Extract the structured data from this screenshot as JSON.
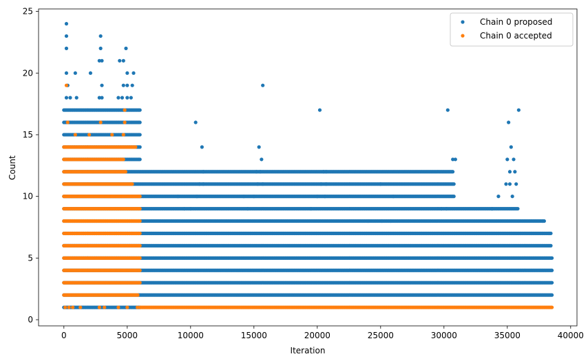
{
  "chart_data": {
    "type": "scatter",
    "title": "",
    "xlabel": "Iteration",
    "ylabel": "Count",
    "xlim": [
      -2000,
      40500
    ],
    "ylim": [
      -0.5,
      25.2
    ],
    "xticks": [
      0,
      5000,
      10000,
      15000,
      20000,
      25000,
      30000,
      35000,
      40000
    ],
    "yticks": [
      0,
      5,
      10,
      15,
      20,
      25
    ],
    "grid": false,
    "legend_position": "top-right",
    "series": [
      {
        "name": "Chain 0 proposed",
        "color": "#1f77b4",
        "marker": "circle",
        "bands": [
          {
            "y": 1,
            "x_start": 0,
            "x_end": 6000
          },
          {
            "y": 2,
            "x_start": 0,
            "x_end": 38600
          },
          {
            "y": 3,
            "x_start": 0,
            "x_end": 38600
          },
          {
            "y": 4,
            "x_start": 0,
            "x_end": 38600
          },
          {
            "y": 5,
            "x_start": 0,
            "x_end": 38600
          },
          {
            "y": 6,
            "x_start": 0,
            "x_end": 38500
          },
          {
            "y": 7,
            "x_start": 0,
            "x_end": 38500
          },
          {
            "y": 8,
            "x_start": 0,
            "x_end": 38000
          },
          {
            "y": 9,
            "x_start": 0,
            "x_end": 35900
          },
          {
            "y": 10,
            "x_start": 0,
            "x_end": 30800
          },
          {
            "y": 11,
            "x_start": 0,
            "x_end": 30800
          },
          {
            "y": 12,
            "x_start": 0,
            "x_end": 30700
          },
          {
            "y": 13,
            "x_start": 0,
            "x_end": 6000
          },
          {
            "y": 14,
            "x_start": 0,
            "x_end": 6000
          },
          {
            "y": 15,
            "x_start": 0,
            "x_end": 6000
          },
          {
            "y": 16,
            "x_start": 0,
            "x_end": 6000
          },
          {
            "y": 17,
            "x_start": 0,
            "x_end": 6000
          }
        ],
        "points": [
          {
            "x": 200,
            "y": 24
          },
          {
            "x": 200,
            "y": 23
          },
          {
            "x": 200,
            "y": 22
          },
          {
            "x": 200,
            "y": 20
          },
          {
            "x": 200,
            "y": 18
          },
          {
            "x": 300,
            "y": 19
          },
          {
            "x": 900,
            "y": 20
          },
          {
            "x": 500,
            "y": 18
          },
          {
            "x": 1000,
            "y": 18
          },
          {
            "x": 2100,
            "y": 20
          },
          {
            "x": 2900,
            "y": 23
          },
          {
            "x": 2900,
            "y": 22
          },
          {
            "x": 2800,
            "y": 21
          },
          {
            "x": 3000,
            "y": 21
          },
          {
            "x": 3000,
            "y": 19
          },
          {
            "x": 3000,
            "y": 18
          },
          {
            "x": 2800,
            "y": 18
          },
          {
            "x": 4400,
            "y": 21
          },
          {
            "x": 4700,
            "y": 21
          },
          {
            "x": 4900,
            "y": 22
          },
          {
            "x": 5000,
            "y": 20
          },
          {
            "x": 5500,
            "y": 20
          },
          {
            "x": 4700,
            "y": 19
          },
          {
            "x": 5000,
            "y": 19
          },
          {
            "x": 5400,
            "y": 19
          },
          {
            "x": 4300,
            "y": 18
          },
          {
            "x": 4600,
            "y": 18
          },
          {
            "x": 5000,
            "y": 18
          },
          {
            "x": 5300,
            "y": 18
          },
          {
            "x": 10400,
            "y": 16
          },
          {
            "x": 10900,
            "y": 14
          },
          {
            "x": 11000,
            "y": 12
          },
          {
            "x": 10700,
            "y": 11
          },
          {
            "x": 11000,
            "y": 11
          },
          {
            "x": 10500,
            "y": 10
          },
          {
            "x": 9000,
            "y": 10
          },
          {
            "x": 15700,
            "y": 19
          },
          {
            "x": 15400,
            "y": 14
          },
          {
            "x": 15600,
            "y": 13
          },
          {
            "x": 15200,
            "y": 12
          },
          {
            "x": 15500,
            "y": 12
          },
          {
            "x": 15300,
            "y": 11
          },
          {
            "x": 15700,
            "y": 11
          },
          {
            "x": 14200,
            "y": 10
          },
          {
            "x": 15000,
            "y": 10
          },
          {
            "x": 20200,
            "y": 17
          },
          {
            "x": 20500,
            "y": 12
          },
          {
            "x": 20700,
            "y": 12
          },
          {
            "x": 20300,
            "y": 11
          },
          {
            "x": 20700,
            "y": 11
          },
          {
            "x": 20000,
            "y": 10
          },
          {
            "x": 20600,
            "y": 10
          },
          {
            "x": 25000,
            "y": 11
          },
          {
            "x": 26000,
            "y": 10
          },
          {
            "x": 24000,
            "y": 8
          },
          {
            "x": 25100,
            "y": 8
          },
          {
            "x": 25800,
            "y": 8
          },
          {
            "x": 30300,
            "y": 17
          },
          {
            "x": 30700,
            "y": 13
          },
          {
            "x": 30900,
            "y": 13
          },
          {
            "x": 35100,
            "y": 16
          },
          {
            "x": 35900,
            "y": 17
          },
          {
            "x": 35300,
            "y": 14
          },
          {
            "x": 35000,
            "y": 13
          },
          {
            "x": 35500,
            "y": 13
          },
          {
            "x": 35200,
            "y": 12
          },
          {
            "x": 35600,
            "y": 12
          },
          {
            "x": 34900,
            "y": 11
          },
          {
            "x": 35200,
            "y": 11
          },
          {
            "x": 35700,
            "y": 11
          },
          {
            "x": 34300,
            "y": 10
          },
          {
            "x": 35400,
            "y": 10
          },
          {
            "x": 33800,
            "y": 9
          },
          {
            "x": 37800,
            "y": 8
          },
          {
            "x": 38300,
            "y": 7
          },
          {
            "x": 9500,
            "y": 9
          },
          {
            "x": 10000,
            "y": 9
          },
          {
            "x": 14500,
            "y": 9
          },
          {
            "x": 19500,
            "y": 9
          },
          {
            "x": 29800,
            "y": 9
          },
          {
            "x": 30200,
            "y": 9
          },
          {
            "x": 33800,
            "y": 9
          }
        ]
      },
      {
        "name": "Chain 0 accepted",
        "color": "#ff7f0e",
        "marker": "circle",
        "bands": [
          {
            "y": 1,
            "x_start": 6000,
            "x_end": 38600
          },
          {
            "y": 2,
            "x_start": 0,
            "x_end": 5900
          },
          {
            "y": 3,
            "x_start": 0,
            "x_end": 6000
          },
          {
            "y": 4,
            "x_start": 0,
            "x_end": 6000
          },
          {
            "y": 5,
            "x_start": 0,
            "x_end": 6000
          },
          {
            "y": 6,
            "x_start": 0,
            "x_end": 6000
          },
          {
            "y": 7,
            "x_start": 0,
            "x_end": 6000
          },
          {
            "y": 8,
            "x_start": 0,
            "x_end": 6000
          },
          {
            "y": 9,
            "x_start": 0,
            "x_end": 6000
          },
          {
            "y": 10,
            "x_start": 0,
            "x_end": 6000
          },
          {
            "y": 11,
            "x_start": 0,
            "x_end": 5400
          },
          {
            "y": 12,
            "x_start": 0,
            "x_end": 4900
          },
          {
            "y": 13,
            "x_start": 0,
            "x_end": 4700
          },
          {
            "y": 14,
            "x_start": 0,
            "x_end": 5700
          }
        ],
        "points": [
          {
            "x": 200,
            "y": 19
          },
          {
            "x": 300,
            "y": 16
          },
          {
            "x": 2900,
            "y": 16
          },
          {
            "x": 4800,
            "y": 17
          },
          {
            "x": 4800,
            "y": 16
          },
          {
            "x": 900,
            "y": 15
          },
          {
            "x": 2000,
            "y": 15
          },
          {
            "x": 3800,
            "y": 15
          },
          {
            "x": 4700,
            "y": 15
          },
          {
            "x": 100,
            "y": 1
          },
          {
            "x": 400,
            "y": 1
          },
          {
            "x": 700,
            "y": 1
          },
          {
            "x": 1300,
            "y": 1
          },
          {
            "x": 2800,
            "y": 1
          },
          {
            "x": 3200,
            "y": 1
          },
          {
            "x": 4300,
            "y": 1
          },
          {
            "x": 5000,
            "y": 1
          },
          {
            "x": 5800,
            "y": 1
          }
        ]
      }
    ]
  }
}
